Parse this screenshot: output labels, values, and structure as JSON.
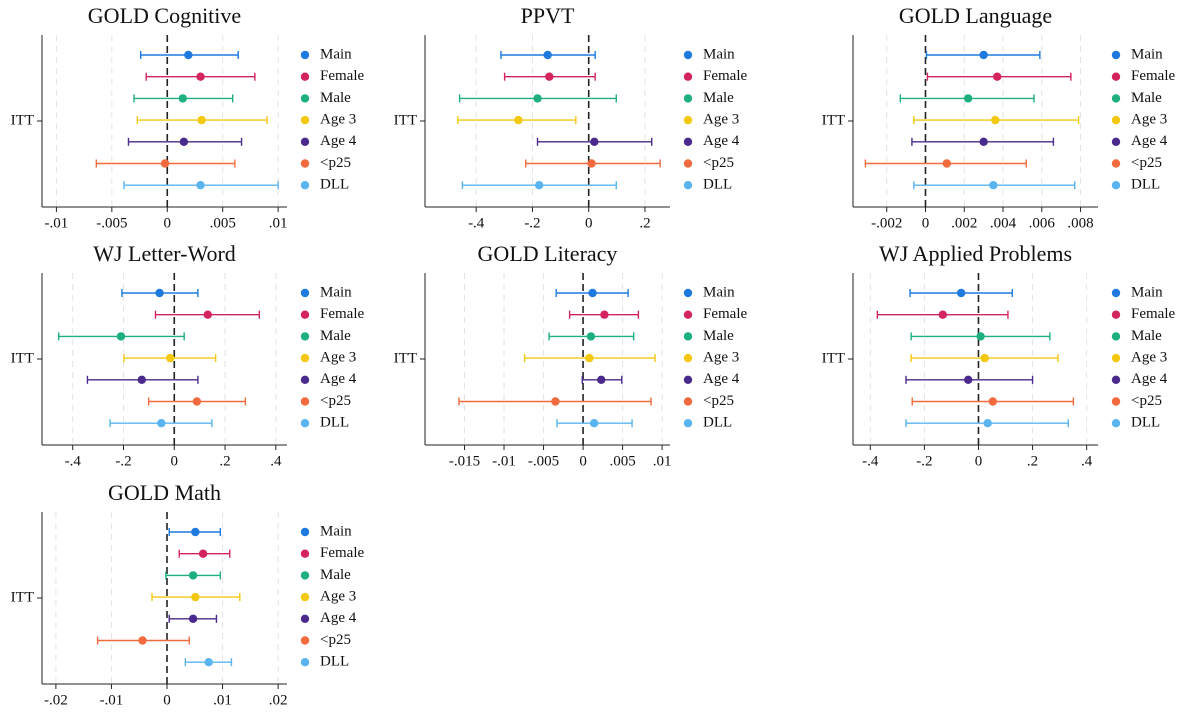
{
  "chart_data": [
    {
      "type": "coefplot",
      "title": "GOLD Cognitive",
      "categories": [
        "ITT"
      ],
      "refline": 0,
      "grid": true,
      "xlim": [
        -0.0113,
        0.0108
      ],
      "xticks": [
        {
          "value": -0.01,
          "label": "-.01"
        },
        {
          "value": -0.005,
          "label": "-.005"
        },
        0,
        {
          "value": 0.005,
          "label": ".005"
        },
        {
          "value": 0.01,
          "label": ".01"
        }
      ],
      "series": [
        {
          "name": "Main",
          "color": "#1f7ae0",
          "values": [
            0.0019
          ],
          "lower": [
            -0.0024
          ],
          "upper": [
            0.0064
          ]
        },
        {
          "name": "Female",
          "color": "#d4245e",
          "values": [
            0.003
          ],
          "lower": [
            -0.0019
          ],
          "upper": [
            0.0079
          ]
        },
        {
          "name": "Male",
          "color": "#1db07e",
          "values": [
            0.0014
          ],
          "lower": [
            -0.003
          ],
          "upper": [
            0.0059
          ]
        },
        {
          "name": "Age 3",
          "color": "#f5c810",
          "values": [
            0.0031
          ],
          "lower": [
            -0.0027
          ],
          "upper": [
            0.009
          ]
        },
        {
          "name": "Age 4",
          "color": "#4a2a8c",
          "values": [
            0.0015
          ],
          "lower": [
            -0.0035
          ],
          "upper": [
            0.0067
          ]
        },
        {
          "name": "<p25",
          "color": "#f26a3d",
          "values": [
            -0.0002
          ],
          "lower": [
            -0.0064
          ],
          "upper": [
            0.0061
          ]
        },
        {
          "name": "DLL",
          "color": "#5ab4f0",
          "values": [
            0.003
          ],
          "lower": [
            -0.0039
          ],
          "upper": [
            0.01
          ]
        }
      ]
    },
    {
      "type": "coefplot",
      "title": "PPVT",
      "categories": [
        "ITT"
      ],
      "refline": 0,
      "grid": true,
      "xlim": [
        -0.582,
        0.289
      ],
      "xticks": [
        {
          "value": -0.4,
          "label": "-.4"
        },
        {
          "value": -0.2,
          "label": "-.2"
        },
        0,
        {
          "value": 0.2,
          "label": ".2"
        }
      ],
      "series": [
        {
          "name": "Main",
          "color": "#1f7ae0",
          "values": [
            -0.146
          ],
          "lower": [
            -0.312
          ],
          "upper": [
            0.023
          ]
        },
        {
          "name": "Female",
          "color": "#d4245e",
          "values": [
            -0.14
          ],
          "lower": [
            -0.299
          ],
          "upper": [
            0.023
          ]
        },
        {
          "name": "Male",
          "color": "#1db07e",
          "values": [
            -0.182
          ],
          "lower": [
            -0.459
          ],
          "upper": [
            0.098
          ]
        },
        {
          "name": "Age 3",
          "color": "#f5c810",
          "values": [
            -0.25
          ],
          "lower": [
            -0.465
          ],
          "upper": [
            -0.046
          ]
        },
        {
          "name": "Age 4",
          "color": "#4a2a8c",
          "values": [
            0.02
          ],
          "lower": [
            -0.182
          ],
          "upper": [
            0.224
          ]
        },
        {
          "name": "<p25",
          "color": "#f26a3d",
          "values": [
            0.01
          ],
          "lower": [
            -0.224
          ],
          "upper": [
            0.254
          ]
        },
        {
          "name": "DLL",
          "color": "#5ab4f0",
          "values": [
            -0.176
          ],
          "lower": [
            -0.449
          ],
          "upper": [
            0.098
          ]
        }
      ]
    },
    {
      "type": "coefplot",
      "title": "GOLD Language",
      "categories": [
        "ITT"
      ],
      "refline": 0,
      "grid": true,
      "xlim": [
        -0.00374,
        0.0089
      ],
      "xticks": [
        {
          "value": -0.002,
          "label": "-.002"
        },
        0,
        {
          "value": 0.002,
          "label": ".002"
        },
        {
          "value": 0.004,
          "label": ".004"
        },
        {
          "value": 0.006,
          "label": ".006"
        },
        {
          "value": 0.008,
          "label": ".008"
        }
      ],
      "series": [
        {
          "name": "Main",
          "color": "#1f7ae0",
          "values": [
            0.003
          ],
          "lower": [
            5e-05
          ],
          "upper": [
            0.0059
          ]
        },
        {
          "name": "Female",
          "color": "#d4245e",
          "values": [
            0.0037
          ],
          "lower": [
            0.0001
          ],
          "upper": [
            0.0075
          ]
        },
        {
          "name": "Male",
          "color": "#1db07e",
          "values": [
            0.0022
          ],
          "lower": [
            -0.0013
          ],
          "upper": [
            0.0056
          ]
        },
        {
          "name": "Age 3",
          "color": "#f5c810",
          "values": [
            0.0036
          ],
          "lower": [
            -0.0006
          ],
          "upper": [
            0.0079
          ]
        },
        {
          "name": "Age 4",
          "color": "#4a2a8c",
          "values": [
            0.003
          ],
          "lower": [
            -0.0007
          ],
          "upper": [
            0.0066
          ]
        },
        {
          "name": "<p25",
          "color": "#f26a3d",
          "values": [
            0.0011
          ],
          "lower": [
            -0.0031
          ],
          "upper": [
            0.0052
          ]
        },
        {
          "name": "DLL",
          "color": "#5ab4f0",
          "values": [
            0.0035
          ],
          "lower": [
            -0.0006
          ],
          "upper": [
            0.0077
          ]
        }
      ]
    },
    {
      "type": "coefplot",
      "title": "WJ Letter-Word",
      "categories": [
        "ITT"
      ],
      "refline": 0,
      "grid": true,
      "xlim": [
        -0.521,
        0.444
      ],
      "xticks": [
        {
          "value": -0.4,
          "label": "-.4"
        },
        {
          "value": -0.2,
          "label": "-.2"
        },
        0,
        {
          "value": 0.2,
          "label": ".2"
        },
        {
          "value": 0.4,
          "label": ".4"
        }
      ],
      "series": [
        {
          "name": "Main",
          "color": "#1f7ae0",
          "values": [
            -0.058
          ],
          "lower": [
            -0.206
          ],
          "upper": [
            0.093
          ]
        },
        {
          "name": "Female",
          "color": "#d4245e",
          "values": [
            0.132
          ],
          "lower": [
            -0.074
          ],
          "upper": [
            0.335
          ]
        },
        {
          "name": "Male",
          "color": "#1db07e",
          "values": [
            -0.21
          ],
          "lower": [
            -0.455
          ],
          "upper": [
            0.039
          ]
        },
        {
          "name": "Age 3",
          "color": "#f5c810",
          "values": [
            -0.016
          ],
          "lower": [
            -0.198
          ],
          "upper": [
            0.163
          ]
        },
        {
          "name": "Age 4",
          "color": "#4a2a8c",
          "values": [
            -0.128
          ],
          "lower": [
            -0.342
          ],
          "upper": [
            0.093
          ]
        },
        {
          "name": "<p25",
          "color": "#f26a3d",
          "values": [
            0.089
          ],
          "lower": [
            -0.101
          ],
          "upper": [
            0.28
          ]
        },
        {
          "name": "DLL",
          "color": "#5ab4f0",
          "values": [
            -0.051
          ],
          "lower": [
            -0.253
          ],
          "upper": [
            0.148
          ]
        }
      ]
    },
    {
      "type": "coefplot",
      "title": "GOLD Literacy",
      "categories": [
        "ITT"
      ],
      "refline": 0,
      "grid": true,
      "xlim": [
        -0.02,
        0.011
      ],
      "xticks": [
        {
          "value": -0.015,
          "label": "-.015"
        },
        {
          "value": -0.01,
          "label": "-.01"
        },
        {
          "value": -0.005,
          "label": "-.005"
        },
        0,
        {
          "value": 0.005,
          "label": ".005"
        },
        {
          "value": 0.01,
          "label": ".01"
        }
      ],
      "series": [
        {
          "name": "Main",
          "color": "#1f7ae0",
          "values": [
            0.0012
          ],
          "lower": [
            -0.0034
          ],
          "upper": [
            0.0057
          ]
        },
        {
          "name": "Female",
          "color": "#d4245e",
          "values": [
            0.0027
          ],
          "lower": [
            -0.0017
          ],
          "upper": [
            0.007
          ]
        },
        {
          "name": "Male",
          "color": "#1db07e",
          "values": [
            0.001
          ],
          "lower": [
            -0.0043
          ],
          "upper": [
            0.0064
          ]
        },
        {
          "name": "Age 3",
          "color": "#f5c810",
          "values": [
            0.0008
          ],
          "lower": [
            -0.0074
          ],
          "upper": [
            0.0091
          ]
        },
        {
          "name": "Age 4",
          "color": "#4a2a8c",
          "values": [
            0.0023
          ],
          "lower": [
            -0.0001
          ],
          "upper": [
            0.0049
          ]
        },
        {
          "name": "<p25",
          "color": "#f26a3d",
          "values": [
            -0.0035
          ],
          "lower": [
            -0.0157
          ],
          "upper": [
            0.0086
          ]
        },
        {
          "name": "DLL",
          "color": "#5ab4f0",
          "values": [
            0.0014
          ],
          "lower": [
            -0.0033
          ],
          "upper": [
            0.0062
          ]
        }
      ]
    },
    {
      "type": "coefplot",
      "title": "WJ Applied Problems",
      "categories": [
        "ITT"
      ],
      "refline": 0,
      "grid": true,
      "xlim": [
        -0.464,
        0.442
      ],
      "xticks": [
        {
          "value": -0.4,
          "label": "-.4"
        },
        {
          "value": -0.2,
          "label": "-.2"
        },
        0,
        {
          "value": 0.2,
          "label": ".2"
        },
        {
          "value": 0.4,
          "label": ".4"
        }
      ],
      "series": [
        {
          "name": "Main",
          "color": "#1f7ae0",
          "values": [
            -0.064
          ],
          "lower": [
            -0.253
          ],
          "upper": [
            0.125
          ]
        },
        {
          "name": "Female",
          "color": "#d4245e",
          "values": [
            -0.132
          ],
          "lower": [
            -0.374
          ],
          "upper": [
            0.109
          ]
        },
        {
          "name": "Male",
          "color": "#1db07e",
          "values": [
            0.008
          ],
          "lower": [
            -0.249
          ],
          "upper": [
            0.264
          ]
        },
        {
          "name": "Age 3",
          "color": "#f5c810",
          "values": [
            0.023
          ],
          "lower": [
            -0.249
          ],
          "upper": [
            0.294
          ]
        },
        {
          "name": "Age 4",
          "color": "#4a2a8c",
          "values": [
            -0.038
          ],
          "lower": [
            -0.268
          ],
          "upper": [
            0.2
          ]
        },
        {
          "name": "<p25",
          "color": "#f26a3d",
          "values": [
            0.053
          ],
          "lower": [
            -0.245
          ],
          "upper": [
            0.351
          ]
        },
        {
          "name": "DLL",
          "color": "#5ab4f0",
          "values": [
            0.034
          ],
          "lower": [
            -0.268
          ],
          "upper": [
            0.332
          ]
        }
      ]
    },
    {
      "type": "coefplot",
      "title": "GOLD Math",
      "categories": [
        "ITT"
      ],
      "refline": 0,
      "grid": true,
      "xlim": [
        -0.0225,
        0.0216
      ],
      "xticks": [
        {
          "value": -0.02,
          "label": "-.02"
        },
        {
          "value": -0.01,
          "label": "-.01"
        },
        0,
        {
          "value": 0.01,
          "label": ".01"
        },
        {
          "value": 0.02,
          "label": ".02"
        }
      ],
      "series": [
        {
          "name": "Main",
          "color": "#1f7ae0",
          "values": [
            0.0051
          ],
          "lower": [
            0.0004
          ],
          "upper": [
            0.0096
          ]
        },
        {
          "name": "Female",
          "color": "#d4245e",
          "values": [
            0.0065
          ],
          "lower": [
            0.0022
          ],
          "upper": [
            0.0113
          ]
        },
        {
          "name": "Male",
          "color": "#1db07e",
          "values": [
            0.0047
          ],
          "lower": [
            -0.0002
          ],
          "upper": [
            0.0096
          ]
        },
        {
          "name": "Age 3",
          "color": "#f5c810",
          "values": [
            0.0051
          ],
          "lower": [
            -0.0027
          ],
          "upper": [
            0.0131
          ]
        },
        {
          "name": "Age 4",
          "color": "#4a2a8c",
          "values": [
            0.0047
          ],
          "lower": [
            0.0004
          ],
          "upper": [
            0.0089
          ]
        },
        {
          "name": "<p25",
          "color": "#f26a3d",
          "values": [
            -0.0044
          ],
          "lower": [
            -0.0125
          ],
          "upper": [
            0.004
          ]
        },
        {
          "name": "DLL",
          "color": "#5ab4f0",
          "values": [
            0.0075
          ],
          "lower": [
            0.0033
          ],
          "upper": [
            0.0116
          ]
        }
      ]
    }
  ]
}
